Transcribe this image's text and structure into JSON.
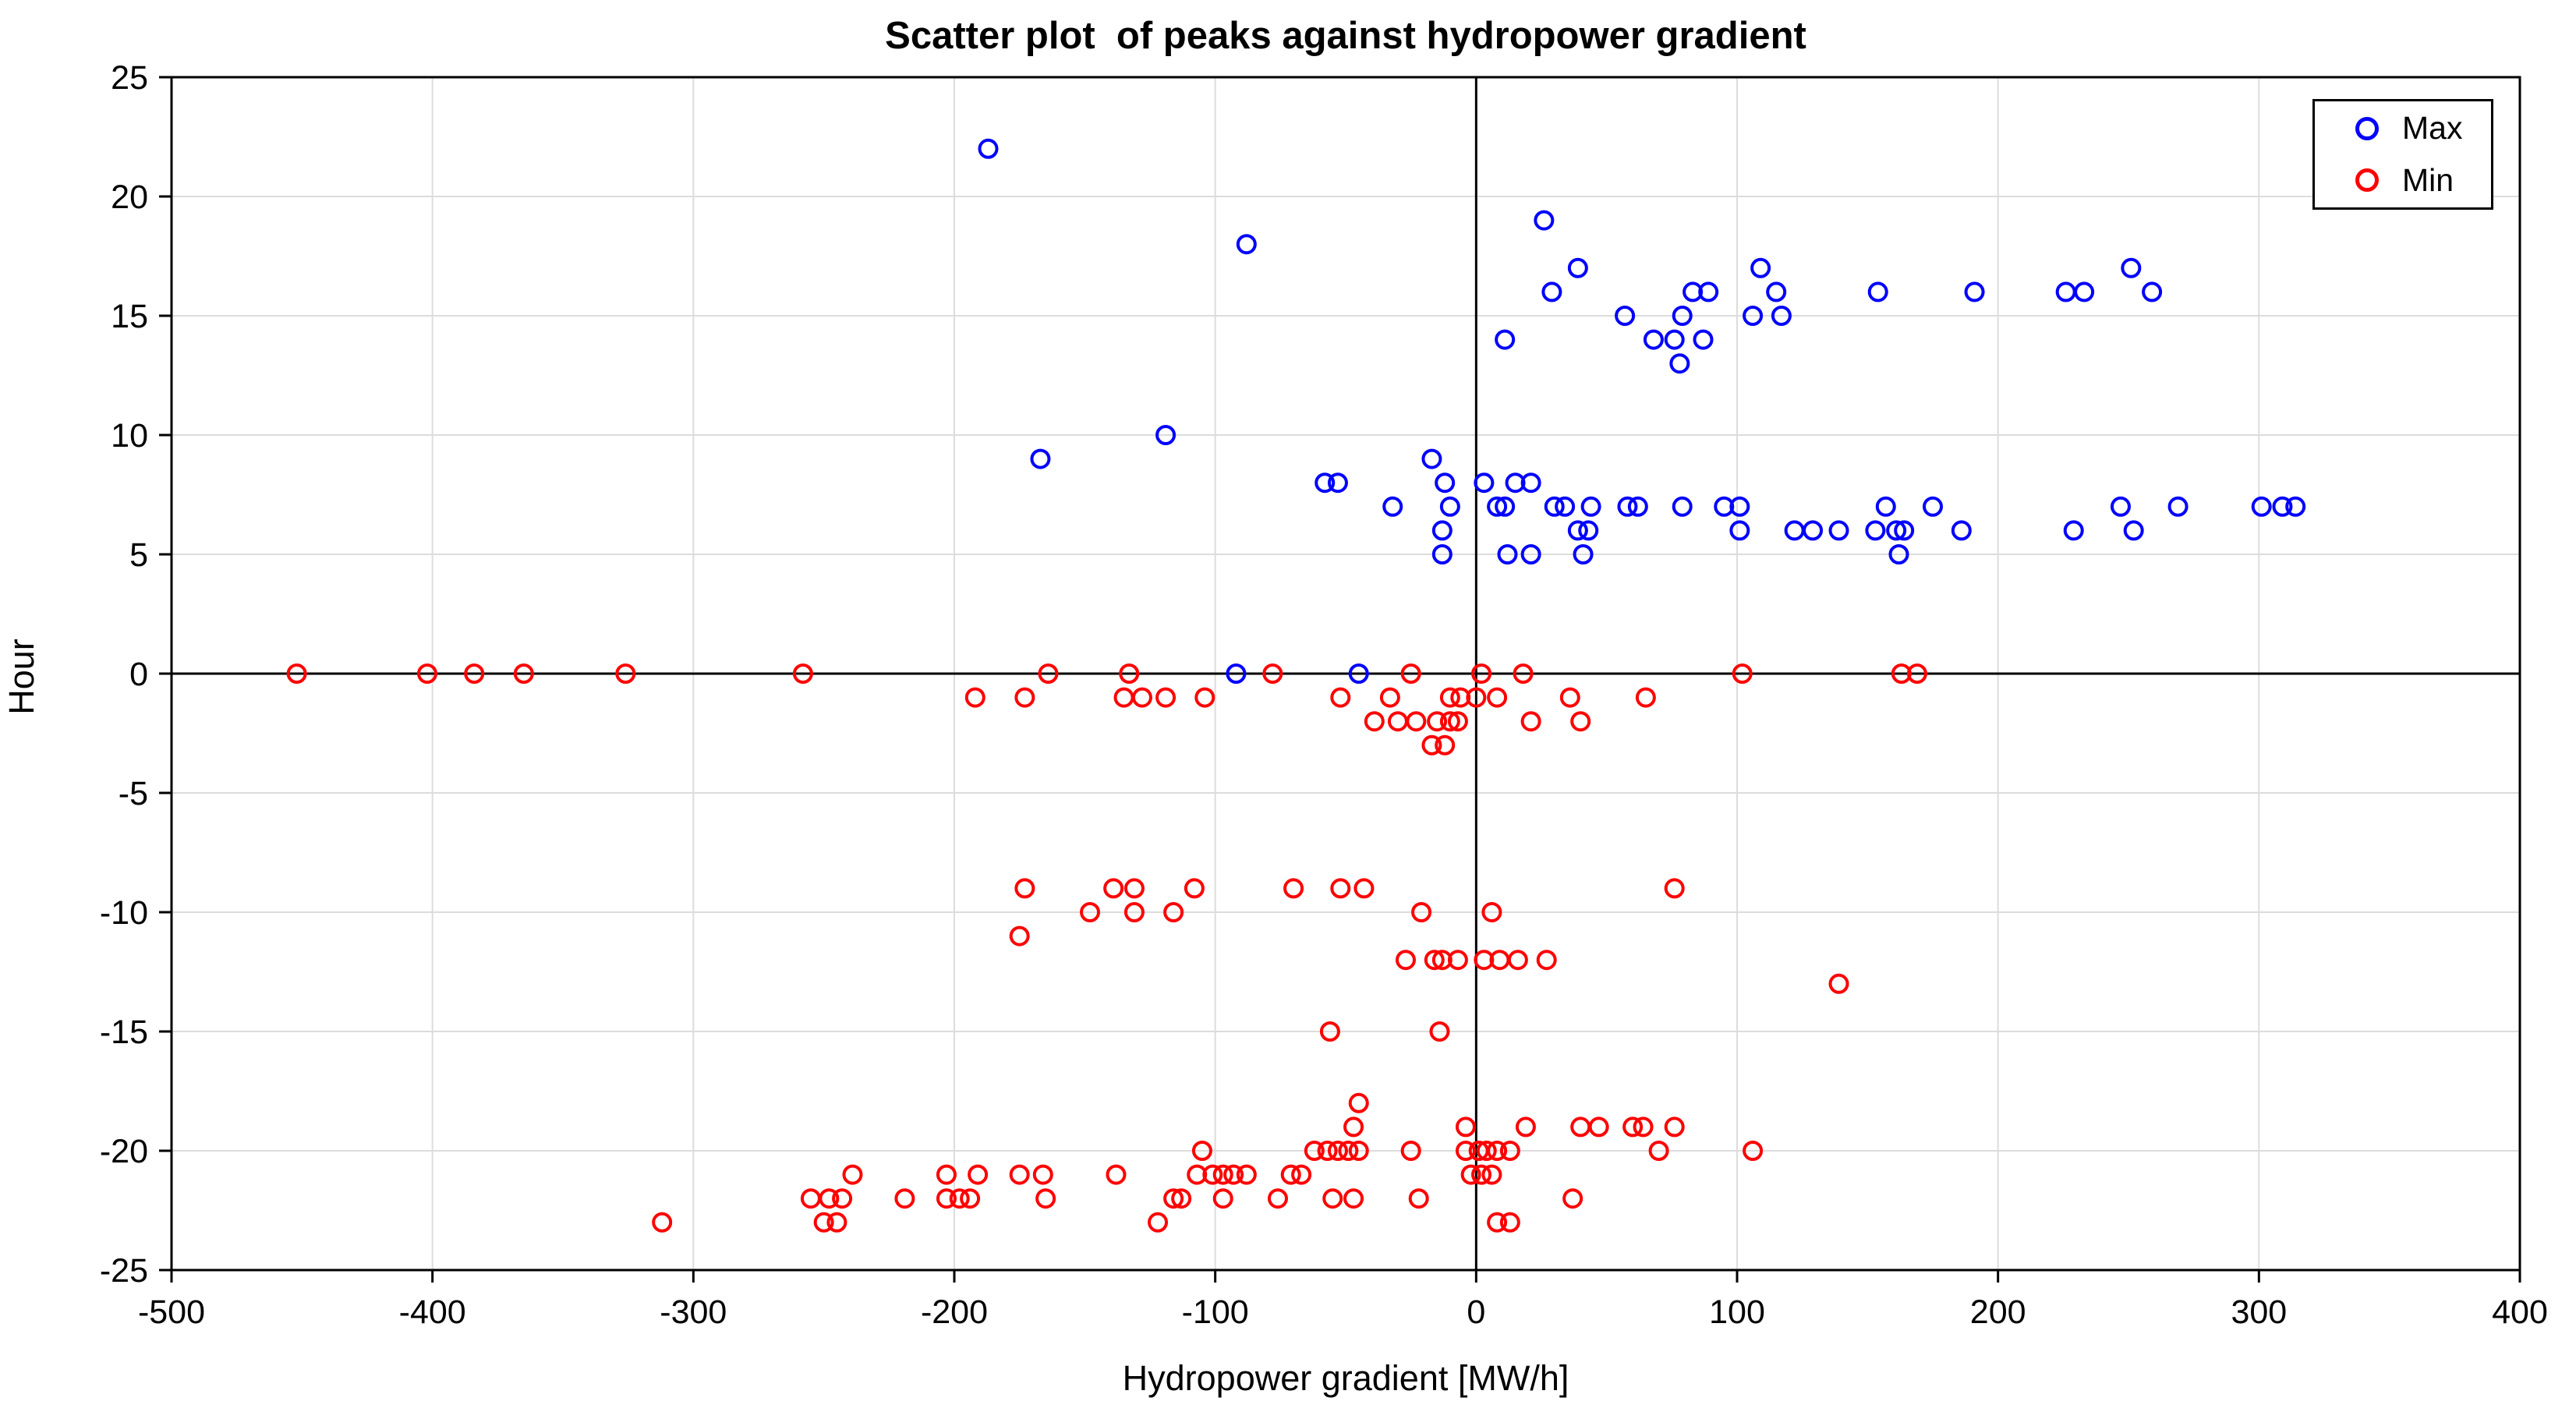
{
  "figure": {
    "title": "Scatter plot  of peaks against hydropower gradient",
    "xlabel": "Hydropower gradient [MW/h]",
    "ylabel": "Hour"
  },
  "legend": {
    "max_label": "Max",
    "min_label": "Min"
  },
  "colors": {
    "max_series": "#0000ff",
    "min_series": "#ff0000",
    "grid": "#dcdcdc",
    "axis": "#000000",
    "background": "#ffffff"
  },
  "chart_data": {
    "type": "scatter",
    "title": "Scatter plot  of peaks against hydropower gradient",
    "xlabel": "Hydropower gradient [MW/h]",
    "ylabel": "Hour",
    "xlim": [
      -500,
      400
    ],
    "ylim": [
      -25,
      25
    ],
    "xticks": [
      -500,
      -400,
      -300,
      -200,
      -100,
      0,
      100,
      200,
      300,
      400
    ],
    "yticks": [
      -25,
      -20,
      -15,
      -10,
      -5,
      0,
      5,
      10,
      15,
      20,
      25
    ],
    "grid": true,
    "zero_lines": true,
    "legend_position": "top-right",
    "marker": "open-circle",
    "series": [
      {
        "name": "Max",
        "color": "#0000ff",
        "points": [
          [
            -187,
            22
          ],
          [
            -88,
            18
          ],
          [
            26,
            19
          ],
          [
            39,
            17
          ],
          [
            109,
            17
          ],
          [
            251,
            17
          ],
          [
            29,
            16
          ],
          [
            83,
            16
          ],
          [
            89,
            16
          ],
          [
            115,
            16
          ],
          [
            154,
            16
          ],
          [
            191,
            16
          ],
          [
            226,
            16
          ],
          [
            233,
            16
          ],
          [
            259,
            16
          ],
          [
            57,
            15
          ],
          [
            79,
            15
          ],
          [
            106,
            15
          ],
          [
            117,
            15
          ],
          [
            11,
            14
          ],
          [
            68,
            14
          ],
          [
            76,
            14
          ],
          [
            87,
            14
          ],
          [
            78,
            13
          ],
          [
            -119,
            10
          ],
          [
            -167,
            9
          ],
          [
            -17,
            9
          ],
          [
            -58,
            8
          ],
          [
            -53,
            8
          ],
          [
            -12,
            8
          ],
          [
            3,
            8
          ],
          [
            15,
            8
          ],
          [
            21,
            8
          ],
          [
            -32,
            7
          ],
          [
            -10,
            7
          ],
          [
            8,
            7
          ],
          [
            11,
            7
          ],
          [
            30,
            7
          ],
          [
            34,
            7
          ],
          [
            44,
            7
          ],
          [
            58,
            7
          ],
          [
            62,
            7
          ],
          [
            79,
            7
          ],
          [
            95,
            7
          ],
          [
            101,
            7
          ],
          [
            157,
            7
          ],
          [
            175,
            7
          ],
          [
            247,
            7
          ],
          [
            269,
            7
          ],
          [
            301,
            7
          ],
          [
            309,
            7
          ],
          [
            314,
            7
          ],
          [
            -13,
            6
          ],
          [
            39,
            6
          ],
          [
            43,
            6
          ],
          [
            101,
            6
          ],
          [
            122,
            6
          ],
          [
            129,
            6
          ],
          [
            139,
            6
          ],
          [
            153,
            6
          ],
          [
            161,
            6
          ],
          [
            164,
            6
          ],
          [
            186,
            6
          ],
          [
            229,
            6
          ],
          [
            252,
            6
          ],
          [
            -13,
            5
          ],
          [
            12,
            5
          ],
          [
            21,
            5
          ],
          [
            41,
            5
          ],
          [
            162,
            5
          ],
          [
            -92,
            0
          ],
          [
            -45,
            0
          ]
        ]
      },
      {
        "name": "Min",
        "color": "#ff0000",
        "points": [
          [
            -452,
            0
          ],
          [
            -402,
            0
          ],
          [
            -384,
            0
          ],
          [
            -365,
            0
          ],
          [
            -326,
            0
          ],
          [
            -258,
            0
          ],
          [
            -164,
            0
          ],
          [
            -133,
            0
          ],
          [
            -78,
            0
          ],
          [
            -25,
            0
          ],
          [
            2,
            0
          ],
          [
            18,
            0
          ],
          [
            102,
            0
          ],
          [
            163,
            0
          ],
          [
            169,
            0
          ],
          [
            -192,
            -1
          ],
          [
            -173,
            -1
          ],
          [
            -135,
            -1
          ],
          [
            -128,
            -1
          ],
          [
            -119,
            -1
          ],
          [
            -104,
            -1
          ],
          [
            -52,
            -1
          ],
          [
            -33,
            -1
          ],
          [
            -10,
            -1
          ],
          [
            -6,
            -1
          ],
          [
            0,
            -1
          ],
          [
            8,
            -1
          ],
          [
            36,
            -1
          ],
          [
            65,
            -1
          ],
          [
            -39,
            -2
          ],
          [
            -30,
            -2
          ],
          [
            -23,
            -2
          ],
          [
            -15,
            -2
          ],
          [
            -10,
            -2
          ],
          [
            -7,
            -2
          ],
          [
            21,
            -2
          ],
          [
            40,
            -2
          ],
          [
            -17,
            -3
          ],
          [
            -12,
            -3
          ],
          [
            -173,
            -9
          ],
          [
            -139,
            -9
          ],
          [
            -131,
            -9
          ],
          [
            -108,
            -9
          ],
          [
            -70,
            -9
          ],
          [
            -52,
            -9
          ],
          [
            -43,
            -9
          ],
          [
            76,
            -9
          ],
          [
            -148,
            -10
          ],
          [
            -131,
            -10
          ],
          [
            -116,
            -10
          ],
          [
            -21,
            -10
          ],
          [
            6,
            -10
          ],
          [
            -175,
            -11
          ],
          [
            -27,
            -12
          ],
          [
            -16,
            -12
          ],
          [
            -13,
            -12
          ],
          [
            -7,
            -12
          ],
          [
            3,
            -12
          ],
          [
            9,
            -12
          ],
          [
            16,
            -12
          ],
          [
            27,
            -12
          ],
          [
            139,
            -13
          ],
          [
            -56,
            -15
          ],
          [
            -14,
            -15
          ],
          [
            -45,
            -18
          ],
          [
            -47,
            -19
          ],
          [
            -4,
            -19
          ],
          [
            19,
            -19
          ],
          [
            40,
            -19
          ],
          [
            47,
            -19
          ],
          [
            60,
            -19
          ],
          [
            64,
            -19
          ],
          [
            76,
            -19
          ],
          [
            -105,
            -20
          ],
          [
            -62,
            -20
          ],
          [
            -57,
            -20
          ],
          [
            -53,
            -20
          ],
          [
            -49,
            -20
          ],
          [
            -45,
            -20
          ],
          [
            -25,
            -20
          ],
          [
            -4,
            -20
          ],
          [
            1,
            -20
          ],
          [
            4,
            -20
          ],
          [
            8,
            -20
          ],
          [
            13,
            -20
          ],
          [
            70,
            -20
          ],
          [
            106,
            -20
          ],
          [
            -239,
            -21
          ],
          [
            -203,
            -21
          ],
          [
            -191,
            -21
          ],
          [
            -175,
            -21
          ],
          [
            -166,
            -21
          ],
          [
            -138,
            -21
          ],
          [
            -107,
            -21
          ],
          [
            -101,
            -21
          ],
          [
            -97,
            -21
          ],
          [
            -93,
            -21
          ],
          [
            -88,
            -21
          ],
          [
            -71,
            -21
          ],
          [
            -67,
            -21
          ],
          [
            -2,
            -21
          ],
          [
            2,
            -21
          ],
          [
            6,
            -21
          ],
          [
            -255,
            -22
          ],
          [
            -248,
            -22
          ],
          [
            -243,
            -22
          ],
          [
            -219,
            -22
          ],
          [
            -203,
            -22
          ],
          [
            -198,
            -22
          ],
          [
            -194,
            -22
          ],
          [
            -165,
            -22
          ],
          [
            -116,
            -22
          ],
          [
            -113,
            -22
          ],
          [
            -97,
            -22
          ],
          [
            -76,
            -22
          ],
          [
            -55,
            -22
          ],
          [
            -47,
            -22
          ],
          [
            -22,
            -22
          ],
          [
            37,
            -22
          ],
          [
            -312,
            -23
          ],
          [
            -250,
            -23
          ],
          [
            -245,
            -23
          ],
          [
            -122,
            -23
          ],
          [
            8,
            -23
          ],
          [
            13,
            -23
          ]
        ]
      }
    ]
  }
}
